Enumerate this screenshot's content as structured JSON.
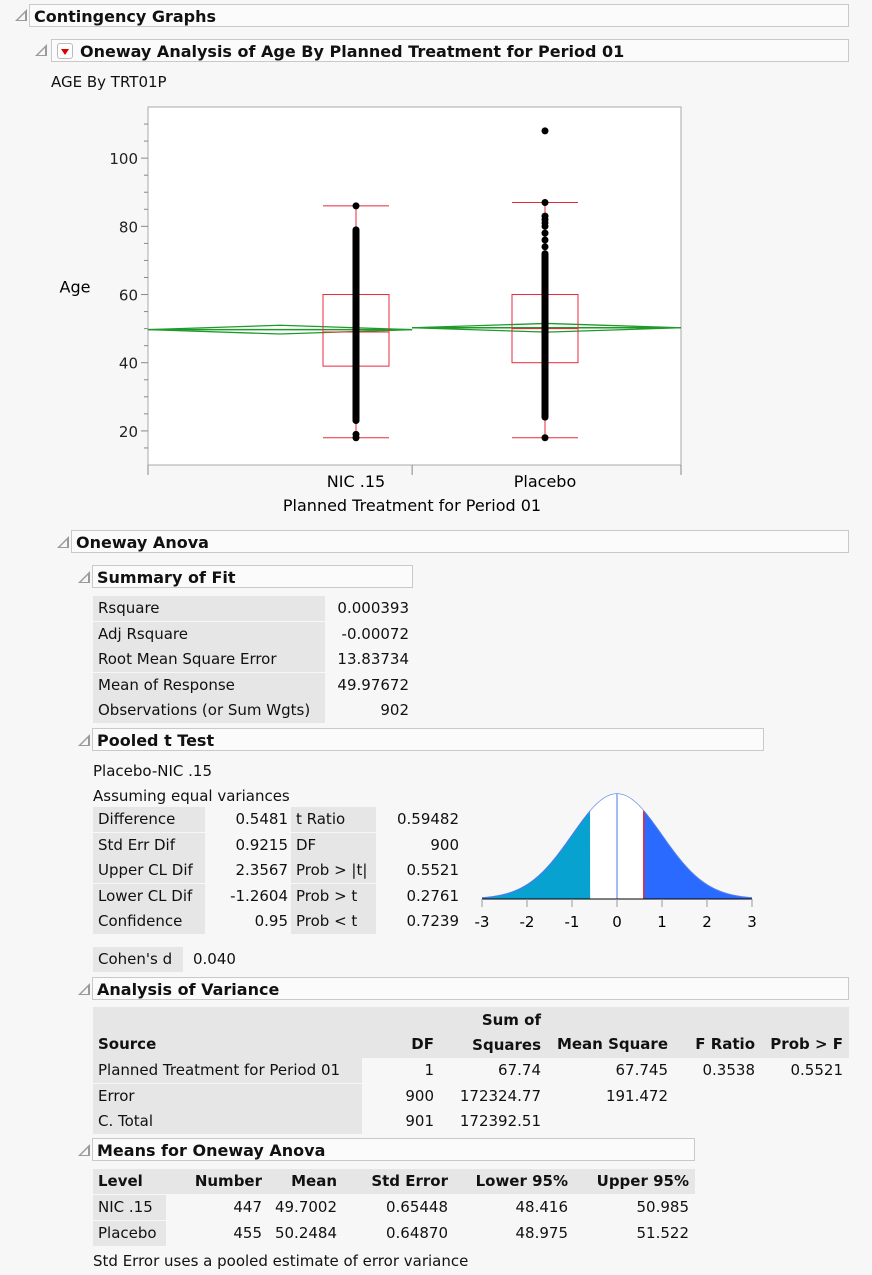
{
  "sections": {
    "contingency": "Contingency Graphs",
    "oneway": "Oneway Analysis of Age By Planned Treatment for Period 01",
    "subtitle": "AGE By TRT01P",
    "anova": "Oneway Anova",
    "summary": "Summary of Fit",
    "ttest": "Pooled t Test",
    "aov": "Analysis of Variance",
    "means": "Means for Oneway Anova"
  },
  "chart_data": {
    "type": "box-scatter",
    "xlabel": "Planned Treatment for Period 01",
    "ylabel": "Age",
    "ylim": [
      10,
      115
    ],
    "yticks": [
      20,
      40,
      60,
      80,
      100
    ],
    "categories": [
      "NIC .15",
      "Placebo"
    ],
    "groups": [
      {
        "name": "NIC .15",
        "n": 447,
        "mean": 49.7002,
        "lower95": 48.416,
        "upper95": 50.985,
        "q1": 39,
        "median": 49,
        "q3": 60,
        "whisker_low": 18,
        "whisker_high": 86,
        "points_dense": [
          22,
          80
        ],
        "points_extra": [
          18,
          19,
          86
        ]
      },
      {
        "name": "Placebo",
        "n": 455,
        "mean": 50.2484,
        "lower95": 48.975,
        "upper95": 51.522,
        "q1": 40,
        "median": 50,
        "q3": 60,
        "whisker_low": 18,
        "whisker_high": 87,
        "points_dense": [
          23,
          73
        ],
        "points_extra": [
          18,
          74,
          76,
          78,
          80,
          81,
          82,
          83,
          87,
          108
        ]
      }
    ],
    "grand_mean": 49.97672,
    "colors": {
      "box": "#e8283c",
      "diamond": "#1e9a2a",
      "points": "#000000"
    }
  },
  "summary_of_fit": [
    {
      "label": "Rsquare",
      "value": "0.000393"
    },
    {
      "label": "Adj Rsquare",
      "value": "-0.00072"
    },
    {
      "label": "Root Mean Square Error",
      "value": "13.83734"
    },
    {
      "label": "Mean of Response",
      "value": "49.97672"
    },
    {
      "label": "Observations (or Sum Wgts)",
      "value": "902"
    }
  ],
  "ttest": {
    "line1": "Placebo-NIC .15",
    "line2": "Assuming equal variances",
    "left": [
      {
        "label": "Difference",
        "value": "0.5481"
      },
      {
        "label": "Std Err Dif",
        "value": "0.9215"
      },
      {
        "label": "Upper CL Dif",
        "value": "2.3567"
      },
      {
        "label": "Lower CL Dif",
        "value": "-1.2604"
      },
      {
        "label": "Confidence",
        "value": "0.95"
      }
    ],
    "right": [
      {
        "label": "t Ratio",
        "value": "0.59482"
      },
      {
        "label": "DF",
        "value": "900"
      },
      {
        "label": "Prob > |t|",
        "value": "0.5521"
      },
      {
        "label": "Prob > t",
        "value": "0.2761"
      },
      {
        "label": "Prob < t",
        "value": "0.7239"
      }
    ],
    "dist": {
      "t": 0.59482,
      "ticks": [
        "-3",
        "-2",
        "-1",
        "0",
        "1",
        "2",
        "3"
      ],
      "colors": {
        "left": "#07a2d0",
        "right": "#2a6aff",
        "curve": "#4a7aee",
        "t_line": "#e8283c"
      }
    },
    "cohen_label": "Cohen's d",
    "cohen_value": "0.040"
  },
  "anova": {
    "headers": [
      "Source",
      "DF",
      "Sum of",
      "Squares",
      "Mean Square",
      "F Ratio",
      "Prob > F"
    ],
    "rows": [
      [
        "Planned Treatment for Period 01",
        "1",
        "67.74",
        "67.745",
        "0.3538",
        "0.5521"
      ],
      [
        "Error",
        "900",
        "172324.77",
        "191.472",
        "",
        ""
      ],
      [
        "C. Total",
        "901",
        "172392.51",
        "",
        "",
        ""
      ]
    ]
  },
  "means": {
    "headers": [
      "Level",
      "Number",
      "Mean",
      "Std Error",
      "Lower 95%",
      "Upper 95%"
    ],
    "rows": [
      [
        "NIC .15",
        "447",
        "49.7002",
        "0.65448",
        "48.416",
        "50.985"
      ],
      [
        "Placebo",
        "455",
        "50.2484",
        "0.64870",
        "48.975",
        "51.522"
      ]
    ],
    "note": "Std Error uses a pooled estimate of error variance"
  }
}
